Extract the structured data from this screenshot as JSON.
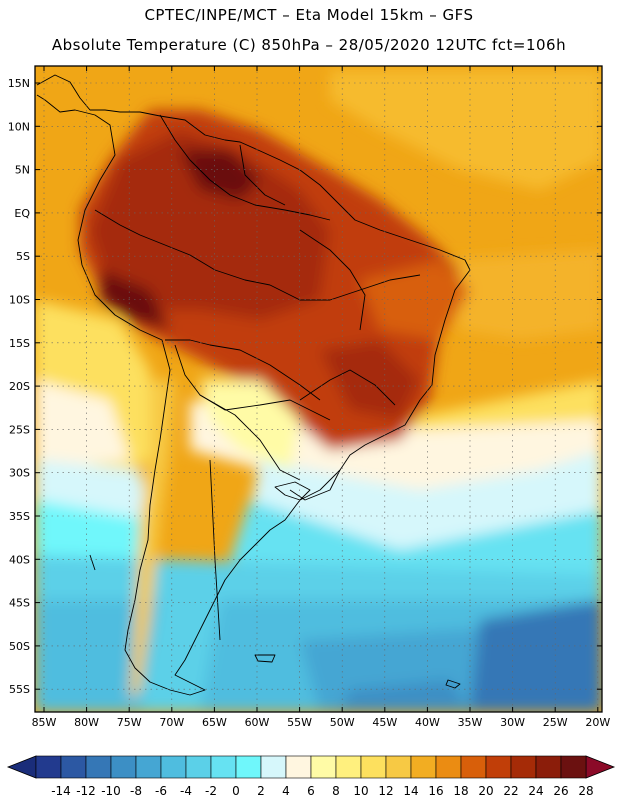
{
  "header": {
    "line1": "CPTEC/INPE/MCT –  Eta Model 15km – GFS",
    "line2": "Absolute Temperature (C) 850hPa – 28/05/2020 12UTC fct=106h"
  },
  "axes": {
    "lat_labels": [
      "15N",
      "10N",
      "5N",
      "EQ",
      "5S",
      "10S",
      "15S",
      "20S",
      "25S",
      "30S",
      "35S",
      "40S",
      "45S",
      "50S",
      "55S"
    ],
    "lon_labels": [
      "85W",
      "80W",
      "75W",
      "70W",
      "65W",
      "60W",
      "55W",
      "50W",
      "45W",
      "40W",
      "35W",
      "30W",
      "25W",
      "20W"
    ]
  },
  "colorbar": {
    "colors": [
      "#223a8e",
      "#2c58a3",
      "#3577b6",
      "#3c8fc5",
      "#45a6d3",
      "#4fbddf",
      "#5bd0e8",
      "#66e2f2",
      "#6ff7fb",
      "#d6f7fb",
      "#fff6e0",
      "#fffba6",
      "#fff07e",
      "#fde05e",
      "#f7c944",
      "#f2ad22",
      "#eb8c12",
      "#d85f0a",
      "#c13e08",
      "#a52b07",
      "#8b1d0a",
      "#6b1110"
    ],
    "labels": [
      "-14",
      "-12",
      "-10",
      "-8",
      "-6",
      "-4",
      "-2",
      "0",
      "2",
      "4",
      "6",
      "8",
      "10",
      "12",
      "14",
      "16",
      "18",
      "20",
      "22",
      "24",
      "26",
      "28"
    ],
    "over_color": "#8b0a28",
    "under_color": "#1a2d7a"
  }
}
